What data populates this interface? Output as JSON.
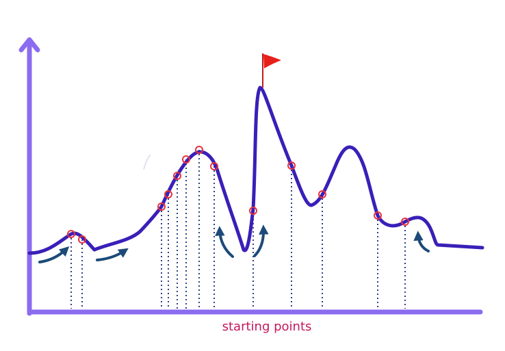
{
  "xlabel": "starting points",
  "colors": {
    "axis": "#8b6cf0",
    "curve": "#3a1fb8",
    "marker": "#e8323c",
    "dotted": "#2a3f86",
    "arrow": "#1d4a78",
    "flag": "#e8201a",
    "label": "#c2185b"
  },
  "icons": {
    "goal": "flag-icon"
  }
}
